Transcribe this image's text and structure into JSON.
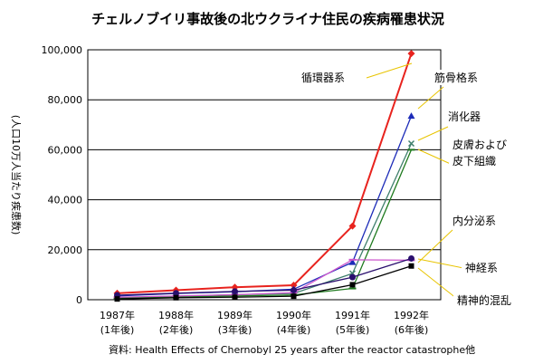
{
  "chart_data": {
    "type": "line",
    "title": "チェルノブイリ事故後の北ウクライナ住民の疾病罹患状況",
    "ylabel": "(人口10万人当たり疾患数)",
    "ylim": [
      0,
      100000
    ],
    "yticks": [
      0,
      20000,
      40000,
      60000,
      80000,
      100000
    ],
    "ytick_labels": [
      "0",
      "20,000",
      "40,000",
      "60,000",
      "80,000",
      "100,000"
    ],
    "categories": [
      {
        "year": "1987年",
        "after": "(1年後)"
      },
      {
        "year": "1988年",
        "after": "(2年後)"
      },
      {
        "year": "1989年",
        "after": "(3年後)"
      },
      {
        "year": "1990年",
        "after": "(4年後)"
      },
      {
        "year": "1991年",
        "after": "(5年後)"
      },
      {
        "year": "1992年",
        "after": "(6年後)"
      }
    ],
    "series": [
      {
        "name": "循環器系",
        "color": "#e8231e",
        "marker": "diamond",
        "values": [
          2600,
          3800,
          5000,
          5800,
          29500,
          98500
        ]
      },
      {
        "name": "筋骨格系",
        "color": "#1c2bb8",
        "marker": "triangle",
        "values": [
          1500,
          2500,
          3200,
          4200,
          15000,
          73500
        ]
      },
      {
        "name": "消化器",
        "color": "#3f7f6c",
        "marker": "x",
        "values": [
          800,
          1400,
          2000,
          2500,
          10500,
          62500
        ]
      },
      {
        "name": "皮膚および\n皮下組織",
        "color": "#1e7a1e",
        "marker": "dash",
        "values": [
          600,
          1100,
          1500,
          1900,
          4500,
          60000
        ]
      },
      {
        "name": "内分泌系",
        "color": "#cc55cc",
        "marker": "dash",
        "values": [
          1000,
          1500,
          2000,
          2800,
          16000,
          15800
        ]
      },
      {
        "name": "神経系",
        "color": "#2a0f6e",
        "marker": "circle",
        "values": [
          1800,
          2600,
          3300,
          3800,
          9000,
          16500
        ]
      },
      {
        "name": "精神的混乱",
        "color": "#000000",
        "marker": "square",
        "values": [
          300,
          800,
          1000,
          1400,
          6000,
          13500
        ]
      }
    ],
    "legend_placement": "right",
    "source": "資料: Health Effects of Chernobyl 25 years after the reactor catastrophe他"
  }
}
